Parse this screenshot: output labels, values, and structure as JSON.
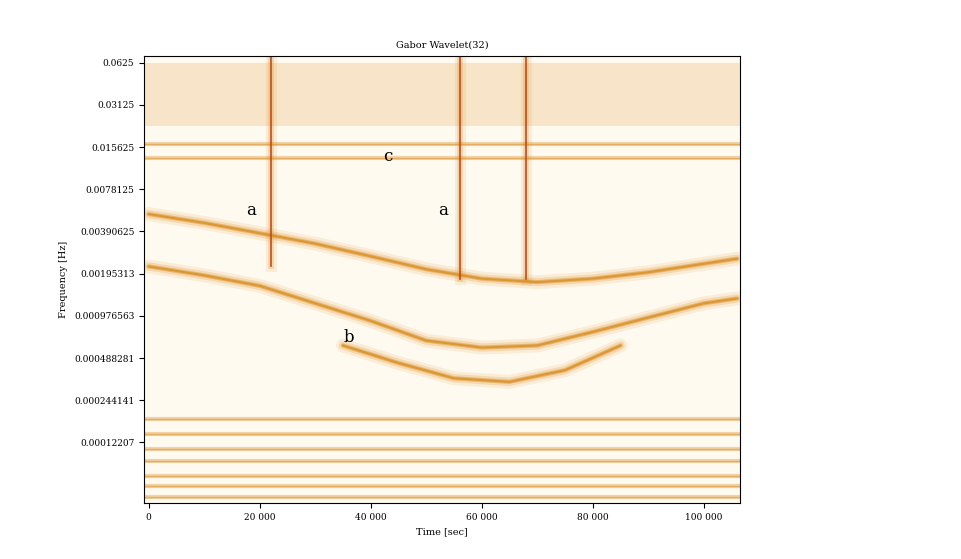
{
  "chart_data": {
    "type": "scalogram",
    "title": "Gabor Wavelet(32)",
    "x_label": "Time [sec]",
    "y_label": "Frequency [Hz]",
    "log": "y",
    "grid": false,
    "color": "#d98a1c",
    "xlim": [
      -800,
      106500
    ],
    "ylim": [
      4.5e-05,
      0.07
    ],
    "xticks": [
      0,
      {
        "value": 20000,
        "label": "20 000"
      },
      {
        "value": 40000,
        "label": "40 000"
      },
      {
        "value": 60000,
        "label": "60 000"
      },
      {
        "value": 80000,
        "label": "80 000"
      },
      {
        "value": 100000,
        "label": "100 000"
      }
    ],
    "yticks": [
      0.0625,
      0.03125,
      0.015625,
      0.0078125,
      0.00390625,
      0.00195313,
      0.000976563,
      0.000488281,
      0.000244141,
      0.00012207
    ],
    "ridges": [
      {
        "x": [
          0,
          10000,
          20000,
          30000,
          40000,
          50000,
          60000,
          70000,
          80000,
          90000,
          100000,
          106000
        ],
        "values": [
          0.0022,
          0.0019,
          0.0016,
          0.0012,
          0.0009,
          0.00065,
          0.00058,
          0.0006,
          0.00075,
          0.00095,
          0.0012,
          0.0013
        ]
      },
      {
        "x": [
          0,
          10000,
          20000,
          30000,
          40000,
          50000,
          60000,
          70000,
          80000,
          90000,
          100000,
          106000
        ],
        "values": [
          0.0052,
          0.0045,
          0.0038,
          0.0032,
          0.0026,
          0.0021,
          0.0018,
          0.0017,
          0.0018,
          0.002,
          0.0023,
          0.0025
        ]
      },
      {
        "x": [
          35000,
          45000,
          55000,
          65000,
          75000,
          85000
        ],
        "values": [
          0.0006,
          0.00045,
          0.00035,
          0.00033,
          0.0004,
          0.0006
        ]
      }
    ],
    "spikes": {
      "x": [
        22000,
        56000,
        68000
      ],
      "values": [
        0.0022,
        0.0018,
        0.0018
      ]
    },
    "bands": {
      "values": [
        0.0165,
        0.0131,
        0.00018,
        0.00014,
        0.00011,
        9e-05,
        7e-05,
        6e-05,
        5e-05
      ]
    },
    "noise_band": [
      0.022,
      0.0625
    ],
    "annotations": [
      {
        "text": "a",
        "x": 18500,
        "y": 0.0055
      },
      {
        "text": "a",
        "x": 53000,
        "y": 0.0055
      },
      {
        "text": "b",
        "x": 36000,
        "y": 0.00068
      },
      {
        "text": "c",
        "x": 43000,
        "y": 0.0135
      }
    ]
  }
}
